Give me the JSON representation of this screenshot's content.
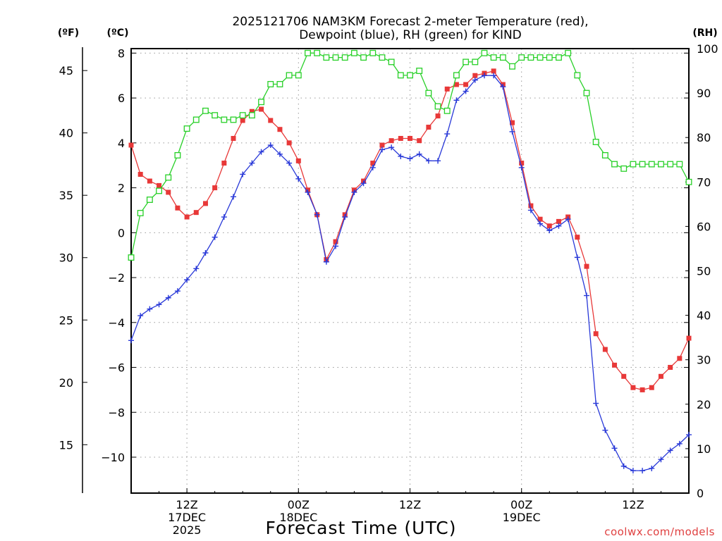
{
  "chart_data": {
    "type": "line",
    "title": "2025121706 NAM3KM Forecast 2-meter Temperature (red),",
    "subtitle": "Dewpoint (blue), RH (green) for KIND",
    "xlabel": "Forecast Time (UTC)",
    "unit_labels": {
      "fahrenheit": "(ºF)",
      "celsius": "(ºC)",
      "rh": "(RH)"
    },
    "x_ticks": [
      {
        "hour": 6,
        "line1": "12Z",
        "line2": "17DEC",
        "line3": "2025"
      },
      {
        "hour": 18,
        "line1": "00Z",
        "line2": "18DEC",
        "line3": ""
      },
      {
        "hour": 30,
        "line1": "12Z",
        "line2": "",
        "line3": ""
      },
      {
        "hour": 42,
        "line1": "00Z",
        "line2": "19DEC",
        "line3": ""
      },
      {
        "hour": 54,
        "line1": "12Z",
        "line2": "",
        "line3": ""
      }
    ],
    "xlim": [
      0,
      60
    ],
    "ylim_celsius": [
      -11.6,
      8.2
    ],
    "ylim_rh": [
      0,
      100
    ],
    "y_ticks_celsius": [
      "8",
      "6",
      "4",
      "2",
      "0",
      "−2",
      "−4",
      "−6",
      "−8",
      "−10"
    ],
    "y_ticks_fahrenheit": [
      "45",
      "40",
      "35",
      "30",
      "25",
      "20",
      "15"
    ],
    "y_ticks_rh": [
      "100",
      "90",
      "80",
      "70",
      "60",
      "50",
      "40",
      "30",
      "20",
      "10",
      "0"
    ],
    "series": [
      {
        "name": "Temperature (°C)",
        "color": "#e83838",
        "marker": "filled-square",
        "values": [
          3.9,
          2.6,
          2.3,
          2.1,
          1.8,
          1.1,
          0.7,
          0.9,
          1.3,
          2.0,
          3.1,
          4.2,
          5.0,
          5.4,
          5.5,
          5.0,
          4.6,
          4.0,
          3.2,
          1.9,
          0.8,
          -1.2,
          -0.4,
          0.8,
          1.9,
          2.3,
          3.1,
          3.9,
          4.1,
          4.2,
          4.2,
          4.1,
          4.7,
          5.2,
          6.4,
          6.6,
          6.6,
          7.0,
          7.1,
          7.2,
          6.6,
          4.9,
          3.1,
          1.2,
          0.6,
          0.3,
          0.5,
          0.7,
          -0.2,
          -1.5,
          -4.5,
          -5.2,
          -5.9,
          -6.4,
          -6.9,
          -7.0,
          -6.9,
          -6.4,
          -6.0,
          -5.6,
          -4.7
        ]
      },
      {
        "name": "Dewpoint (°C)",
        "color": "#2838d8",
        "marker": "plus",
        "values": [
          -4.8,
          -3.7,
          -3.4,
          -3.2,
          -2.9,
          -2.6,
          -2.1,
          -1.6,
          -0.9,
          -0.2,
          0.7,
          1.6,
          2.6,
          3.1,
          3.6,
          3.9,
          3.5,
          3.1,
          2.4,
          1.8,
          0.8,
          -1.3,
          -0.6,
          0.7,
          1.8,
          2.2,
          2.9,
          3.7,
          3.8,
          3.4,
          3.3,
          3.5,
          3.2,
          3.2,
          4.4,
          5.9,
          6.3,
          6.8,
          7.0,
          7.0,
          6.5,
          4.5,
          2.9,
          1.0,
          0.4,
          0.1,
          0.3,
          0.6,
          -1.1,
          -2.8,
          -7.6,
          -8.8,
          -9.6,
          -10.4,
          -10.6,
          -10.6,
          -10.5,
          -10.1,
          -9.7,
          -9.4,
          -9.0
        ]
      },
      {
        "name": "RH (%)",
        "color": "#28d028",
        "marker": "open-square",
        "values": [
          53,
          63,
          66,
          68,
          71,
          76,
          82,
          84,
          86,
          85,
          84,
          84,
          85,
          85,
          88,
          92,
          92,
          94,
          94,
          99,
          99,
          98,
          98,
          98,
          99,
          98,
          99,
          98,
          97,
          94,
          94,
          95,
          90,
          87,
          86,
          94,
          97,
          97,
          99,
          98,
          98,
          96,
          98,
          98,
          98,
          98,
          98,
          99,
          94,
          90,
          79,
          76,
          74,
          73,
          74,
          74,
          74,
          74,
          74,
          74,
          70
        ]
      }
    ],
    "grid": true,
    "credit": "coolwx.com/models"
  }
}
